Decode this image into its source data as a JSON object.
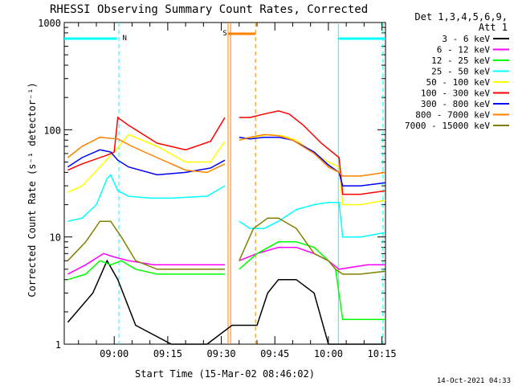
{
  "chart_data": {
    "type": "line",
    "title": "RHESSI Observing Summary Count Rates, Corrected",
    "xlabel": "Start Time (15-Mar-02 08:46:02)",
    "ylabel": "Corrected Count Rate (s⁻¹ detector⁻¹)",
    "y_scale": "log",
    "ylim": [
      1,
      1000
    ],
    "y_ticks": [
      {
        "value": 1,
        "label": "1"
      },
      {
        "value": 10,
        "label": "10"
      },
      {
        "value": 100,
        "label": "100"
      },
      {
        "value": 1000,
        "label": "1000"
      }
    ],
    "xlim_minutes_after_0846": [
      0,
      90
    ],
    "x_ticks": [
      {
        "minute": 14,
        "label": "09:00"
      },
      {
        "minute": 29,
        "label": "09:15"
      },
      {
        "minute": 44,
        "label": "09:30"
      },
      {
        "minute": 59,
        "label": "09:45"
      },
      {
        "minute": 74,
        "label": "10:00"
      },
      {
        "minute": 89,
        "label": "10:15"
      }
    ],
    "legend_header": [
      "Det 1,3,4,5,6,9,",
      "Att 1"
    ],
    "legend_position": "right",
    "annotations": [
      {
        "label": "N",
        "color": "#00ffff"
      },
      {
        "label": "S",
        "color": "#ff8000"
      }
    ],
    "series": [
      {
        "name": "3 - 6 keV",
        "color": "#000000",
        "x": [
          1,
          8,
          12,
          15,
          20,
          30,
          40,
          47,
          54,
          57,
          60,
          65,
          70,
          74,
          80,
          90
        ],
        "y": [
          1.6,
          3,
          6,
          4,
          1.5,
          1,
          1,
          1.5,
          1.5,
          3,
          4,
          4,
          3,
          1,
          1,
          1
        ]
      },
      {
        "name": "6 - 12 keV",
        "color": "#ff00ff",
        "x": [
          1,
          6,
          11,
          14,
          18,
          25,
          35,
          45,
          49,
          54,
          60,
          65,
          70,
          74,
          77,
          85,
          90
        ],
        "y": [
          4.5,
          5.5,
          7,
          6.5,
          6,
          5.5,
          5.5,
          5.5,
          6,
          7,
          8,
          8,
          7,
          6,
          5,
          5.5,
          5.5
        ]
      },
      {
        "name": "12 - 25 keV",
        "color": "#00ff00",
        "x": [
          1,
          6,
          10,
          13,
          16,
          20,
          26,
          36,
          45,
          49,
          54,
          60,
          65,
          70,
          74,
          76,
          78,
          90
        ],
        "y": [
          4,
          4.5,
          6,
          5.5,
          6,
          5,
          4.5,
          4.5,
          4.5,
          5,
          7,
          9,
          9,
          8,
          6,
          5,
          1.7,
          1.7
        ]
      },
      {
        "name": "25 - 50 keV",
        "color": "#00ffff",
        "x": [
          1,
          5,
          9,
          12,
          13,
          15,
          18,
          24,
          30,
          40,
          45,
          49,
          52,
          56,
          60,
          65,
          70,
          74,
          77,
          78,
          83,
          90
        ],
        "y": [
          14,
          15,
          20,
          35,
          38,
          27,
          24,
          23,
          23,
          24,
          30,
          14,
          12,
          12,
          14,
          18,
          20,
          21,
          21,
          10,
          10,
          11
        ]
      },
      {
        "name": "50 - 100 keV",
        "color": "#ffff00",
        "x": [
          1,
          5,
          10,
          14,
          18,
          26,
          34,
          41,
          45,
          49,
          53,
          57,
          61,
          65,
          70,
          74,
          77,
          78,
          83,
          90
        ],
        "y": [
          26,
          30,
          45,
          62,
          90,
          70,
          50,
          50,
          78,
          80,
          85,
          90,
          88,
          80,
          60,
          50,
          45,
          20,
          20,
          22
        ]
      },
      {
        "name": "100 - 300 keV",
        "color": "#ff0000",
        "x": [
          1,
          5,
          12,
          14,
          15,
          18,
          26,
          34,
          41,
          45,
          49,
          52,
          56,
          60,
          63,
          67,
          72,
          77,
          78,
          83,
          90
        ],
        "y": [
          42,
          48,
          58,
          62,
          130,
          110,
          75,
          65,
          78,
          130,
          130,
          130,
          140,
          150,
          140,
          110,
          75,
          55,
          25,
          25,
          27
        ]
      },
      {
        "name": "300 - 800 keV",
        "color": "#0000ff",
        "x": [
          1,
          5,
          10,
          13,
          15,
          18,
          26,
          34,
          41,
          45,
          49,
          52,
          56,
          60,
          64,
          70,
          74,
          77,
          78,
          83,
          90
        ],
        "y": [
          45,
          55,
          65,
          62,
          52,
          45,
          38,
          40,
          44,
          52,
          85,
          82,
          85,
          85,
          80,
          62,
          47,
          40,
          30,
          30,
          32
        ]
      },
      {
        "name": "800 - 7000 keV",
        "color": "#ff8000",
        "x": [
          1,
          5,
          10,
          15,
          19,
          26,
          34,
          40,
          45,
          49,
          52,
          56,
          60,
          64,
          70,
          74,
          77,
          78,
          83,
          90
        ],
        "y": [
          55,
          70,
          85,
          82,
          70,
          55,
          42,
          40,
          48,
          80,
          85,
          90,
          88,
          80,
          60,
          45,
          40,
          37,
          37,
          40
        ]
      },
      {
        "name": "7000 - 15000 keV",
        "color": "#808000",
        "x": [
          1,
          6,
          10,
          13,
          16,
          20,
          26,
          36,
          45,
          49,
          53,
          57,
          60,
          65,
          70,
          74,
          76,
          78,
          83,
          90
        ],
        "y": [
          6,
          9,
          14,
          14,
          10,
          6,
          5,
          5,
          5,
          6,
          12,
          15,
          15,
          12,
          7,
          6,
          5,
          4.5,
          4.5,
          4.8
        ]
      }
    ]
  }
}
